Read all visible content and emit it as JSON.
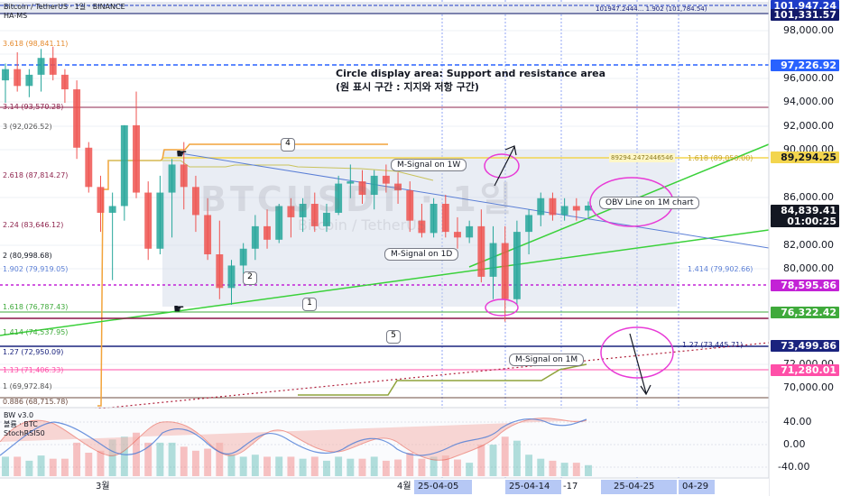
{
  "header": {
    "symbol_line": "Bitcoin / TetherUS · 1일 · BINANCE",
    "indicator": "HA-MS"
  },
  "price_axis": {
    "ticks": [
      "98,000.00",
      "96,000.00",
      "94,000.00",
      "92,000.00",
      "90,000.00",
      "86,000.00",
      "82,000.00",
      "80,000.00",
      "72,000.00",
      "70,000.00"
    ],
    "pills": [
      {
        "label": "101,947.24",
        "color": "#1e3cc8"
      },
      {
        "label": "101,331.57",
        "color": "#131a6b"
      },
      {
        "label": "97,226.92",
        "color": "#2962ff"
      },
      {
        "label": "89,294.25",
        "color": "#f3d54e",
        "text_color": "#131722"
      },
      {
        "label": "84,839.41",
        "color": "#131722"
      },
      {
        "label": "01:00:25",
        "color": "#131722"
      },
      {
        "label": "78,595.86",
        "color": "#c322d6"
      },
      {
        "label": "76,322.42",
        "color": "#3faa3b"
      },
      {
        "label": "73,499.86",
        "color": "#1a237e"
      },
      {
        "label": "71,280.01",
        "color": "#ff4fa8"
      }
    ]
  },
  "time_axis": {
    "labels": [
      "3월",
      "4월",
      "25-04-05",
      "25-04-14",
      "-17",
      "25-04-25",
      "04-29"
    ]
  },
  "fib_labels": [
    "3.618 (98,841.11)",
    "3.14 (93,570.28)",
    "3 (92,026.52)",
    "2.618 (87,814.27)",
    "2.24 (83,646.12)",
    "2 (80,998.68)",
    "1.902 (79,919.05)",
    "1.618 (76,787.43)",
    "1.414 (74,537.95)",
    "1.27 (72,950.09)",
    "1.13 (71,406.33)",
    "1 (69,972.84)",
    "0.886 (68,715.78)"
  ],
  "right_fib_labels": [
    "1.618 (89,050.00)",
    "1.414 (79,902.66)",
    "1.27 (73,445.71)"
  ],
  "top_right_label": "101947.2444... 1.902 (101,784.54)",
  "level_tag": "89294.2472446546",
  "annotations": {
    "title_en": "Circle display area: Support and resistance area",
    "title_ko": "(원 표시 구간 : 지지와 저항 구간)",
    "m_signal_1w": "M-Signal on 1W",
    "m_signal_1d": "M-Signal on 1D",
    "m_signal_1m": "M-Signal on 1M",
    "obv_line": "OBV Line on 1M chart",
    "numbers": [
      "1",
      "2",
      "4",
      "5"
    ]
  },
  "watermark": {
    "main": "BTCUSDT · 1일",
    "sub": "Bitcoin / TetherUS"
  },
  "oscillator": {
    "labels": [
      "BW v3.0",
      "볼륨 · BTC",
      "StochRSI50"
    ],
    "ticks": [
      "40.00",
      "0.00",
      "-40.00"
    ]
  },
  "chart_data": {
    "type": "candlestick",
    "ylim": [
      67000,
      103000
    ],
    "levels": {
      "current": 84839.41,
      "support_green": 76322.42,
      "resistance_yellow": 89294.25,
      "purple": 78595.86
    },
    "ohlc": [
      [
        96000,
        97500,
        94000,
        97000
      ],
      [
        97000,
        98500,
        95000,
        95500
      ],
      [
        95500,
        97000,
        94500,
        96500
      ],
      [
        96500,
        98800,
        95000,
        98000
      ],
      [
        98000,
        99000,
        96000,
        96500
      ],
      [
        96500,
        97000,
        94000,
        95200
      ],
      [
        95200,
        96000,
        89000,
        90000
      ],
      [
        90000,
        90500,
        86000,
        86500
      ],
      [
        86500,
        87500,
        82500,
        84200
      ],
      [
        84200,
        86000,
        78200,
        84800
      ],
      [
        84800,
        92000,
        83500,
        92000
      ],
      [
        92000,
        95000,
        85500,
        86000
      ],
      [
        86000,
        87000,
        80000,
        81000
      ],
      [
        81000,
        87500,
        80500,
        86000
      ],
      [
        86000,
        89000,
        82000,
        88500
      ],
      [
        88500,
        90500,
        84500,
        86500
      ],
      [
        86500,
        87500,
        82500,
        84000
      ],
      [
        84000,
        85500,
        80000,
        80500
      ],
      [
        80500,
        83500,
        76500,
        77500
      ],
      [
        77500,
        80000,
        76000,
        79500
      ],
      [
        79500,
        81500,
        78000,
        81000
      ],
      [
        81000,
        84000,
        80000,
        83000
      ],
      [
        83000,
        84500,
        81000,
        81800
      ],
      [
        81800,
        85000,
        81500,
        84800
      ],
      [
        84800,
        85500,
        82000,
        83800
      ],
      [
        83800,
        85500,
        82500,
        85000
      ],
      [
        85000,
        86000,
        82500,
        83000
      ],
      [
        83000,
        85000,
        82500,
        84200
      ],
      [
        84200,
        87500,
        84000,
        86800
      ],
      [
        86800,
        88500,
        85500,
        87000
      ],
      [
        87000,
        88000,
        85000,
        85800
      ],
      [
        85800,
        88000,
        84500,
        87500
      ],
      [
        87500,
        88500,
        86000,
        86800
      ],
      [
        86800,
        87800,
        85000,
        86200
      ],
      [
        86200,
        87000,
        82500,
        83500
      ],
      [
        83500,
        85000,
        82000,
        82400
      ],
      [
        82400,
        85500,
        82000,
        85000
      ],
      [
        85000,
        85800,
        82000,
        82500
      ],
      [
        82500,
        83800,
        81000,
        82000
      ],
      [
        82000,
        83500,
        81500,
        83000
      ],
      [
        83000,
        84500,
        78000,
        78500
      ],
      [
        78500,
        83000,
        76500,
        81500
      ],
      [
        81500,
        83000,
        74500,
        76500
      ],
      [
        76500,
        83500,
        76000,
        82500
      ],
      [
        82500,
        84500,
        80500,
        84000
      ],
      [
        84000,
        86000,
        83000,
        85500
      ],
      [
        85500,
        86000,
        83500,
        84000
      ],
      [
        84000,
        85500,
        83500,
        84800
      ],
      [
        84800,
        85500,
        83500,
        84400
      ],
      [
        84400,
        85200,
        83800,
        84839
      ]
    ]
  }
}
